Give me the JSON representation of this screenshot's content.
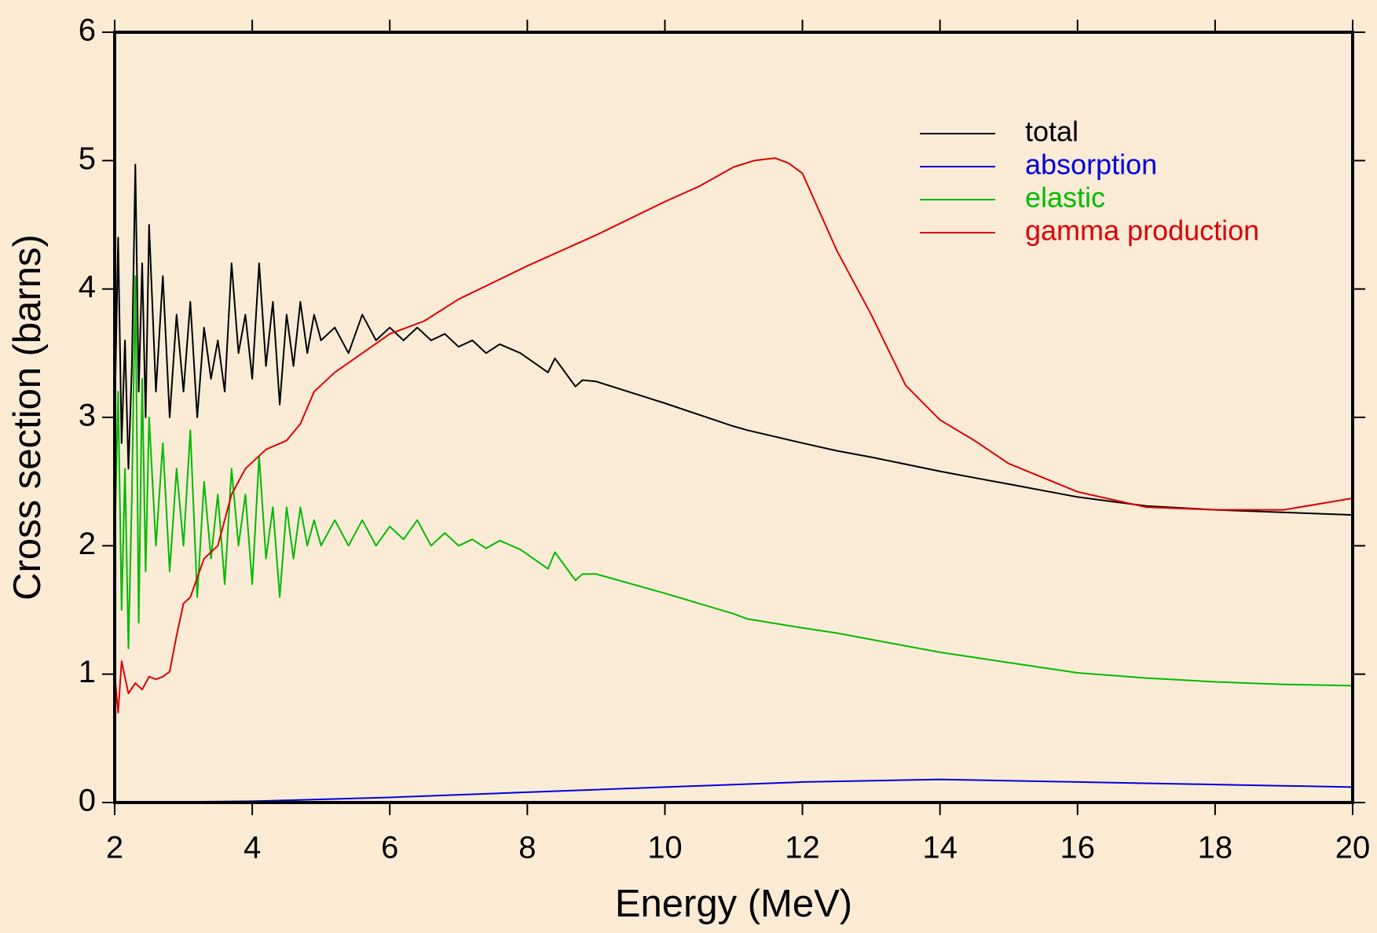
{
  "chart_data": {
    "type": "line",
    "xlabel": "Energy (MeV)",
    "ylabel": "Cross section (barns)",
    "xlim": [
      2,
      20
    ],
    "ylim": [
      0,
      6
    ],
    "xticks": [
      2,
      4,
      6,
      8,
      10,
      12,
      14,
      16,
      18,
      20
    ],
    "yticks": [
      0,
      1,
      2,
      3,
      4,
      5,
      6
    ],
    "legend": "upper right",
    "series": [
      {
        "name": "total",
        "color": "#000000",
        "x": [
          2.0,
          2.05,
          2.1,
          2.15,
          2.2,
          2.25,
          2.3,
          2.35,
          2.4,
          2.45,
          2.5,
          2.6,
          2.7,
          2.8,
          2.9,
          3.0,
          3.1,
          3.2,
          3.3,
          3.4,
          3.5,
          3.6,
          3.7,
          3.8,
          3.9,
          4.0,
          4.1,
          4.2,
          4.3,
          4.4,
          4.5,
          4.6,
          4.7,
          4.8,
          4.9,
          5.0,
          5.2,
          5.4,
          5.6,
          5.8,
          6.0,
          6.2,
          6.4,
          6.6,
          6.8,
          7.0,
          7.2,
          7.4,
          7.6,
          7.9,
          8.3,
          8.4,
          8.7,
          8.8,
          9.0,
          10,
          11,
          11.2,
          12,
          12.5,
          13,
          14,
          14.5,
          15,
          16,
          17,
          18,
          19,
          20
        ],
        "values": [
          3.0,
          4.4,
          2.8,
          3.6,
          2.6,
          3.4,
          4.97,
          3.2,
          4.2,
          3.0,
          4.5,
          3.2,
          4.1,
          3.0,
          3.8,
          3.2,
          3.9,
          3.0,
          3.7,
          3.3,
          3.6,
          3.2,
          4.2,
          3.5,
          3.8,
          3.3,
          4.2,
          3.4,
          3.9,
          3.1,
          3.8,
          3.4,
          3.9,
          3.5,
          3.8,
          3.6,
          3.7,
          3.5,
          3.8,
          3.6,
          3.7,
          3.6,
          3.7,
          3.6,
          3.65,
          3.55,
          3.6,
          3.5,
          3.57,
          3.5,
          3.35,
          3.46,
          3.24,
          3.29,
          3.28,
          3.11,
          2.93,
          2.9,
          2.8,
          2.74,
          2.69,
          2.58,
          2.53,
          2.48,
          2.38,
          2.31,
          2.28,
          2.26,
          2.24
        ]
      },
      {
        "name": "absorption",
        "color": "#0000dd",
        "x": [
          2,
          4,
          6,
          8,
          10,
          12,
          14,
          16,
          18,
          20
        ],
        "values": [
          0,
          0.01,
          0.04,
          0.08,
          0.12,
          0.16,
          0.18,
          0.16,
          0.14,
          0.12
        ]
      },
      {
        "name": "elastic",
        "color": "#00bb00",
        "x": [
          2.0,
          2.05,
          2.1,
          2.15,
          2.2,
          2.25,
          2.3,
          2.35,
          2.4,
          2.45,
          2.5,
          2.6,
          2.7,
          2.8,
          2.9,
          3.0,
          3.1,
          3.2,
          3.3,
          3.4,
          3.5,
          3.6,
          3.7,
          3.8,
          3.9,
          4.0,
          4.1,
          4.2,
          4.3,
          4.4,
          4.5,
          4.6,
          4.7,
          4.8,
          4.9,
          5.0,
          5.2,
          5.4,
          5.6,
          5.8,
          6.0,
          6.2,
          6.4,
          6.6,
          6.8,
          7.0,
          7.2,
          7.4,
          7.6,
          7.9,
          8.3,
          8.4,
          8.7,
          8.8,
          9.0,
          10,
          11,
          11.2,
          12,
          12.5,
          13,
          14,
          14.5,
          15,
          16,
          17,
          18,
          19,
          20
        ],
        "values": [
          2.0,
          3.2,
          1.5,
          2.6,
          1.2,
          2.4,
          4.1,
          1.4,
          3.3,
          1.8,
          3.0,
          2.0,
          2.8,
          1.8,
          2.6,
          2.0,
          2.9,
          1.6,
          2.5,
          1.9,
          2.4,
          1.7,
          2.6,
          2.0,
          2.4,
          1.7,
          2.7,
          1.9,
          2.3,
          1.6,
          2.3,
          1.9,
          2.3,
          2.0,
          2.2,
          2.0,
          2.2,
          2.0,
          2.2,
          2.0,
          2.15,
          2.05,
          2.2,
          2.0,
          2.1,
          2.0,
          2.05,
          1.98,
          2.04,
          1.97,
          1.82,
          1.95,
          1.73,
          1.78,
          1.78,
          1.63,
          1.47,
          1.43,
          1.36,
          1.32,
          1.27,
          1.17,
          1.13,
          1.09,
          1.01,
          0.97,
          0.94,
          0.92,
          0.91
        ]
      },
      {
        "name": "gamma production",
        "color": "#dd0000",
        "x": [
          2,
          2.05,
          2.1,
          2.2,
          2.3,
          2.4,
          2.5,
          2.6,
          2.7,
          2.8,
          2.9,
          3.0,
          3.1,
          3.3,
          3.5,
          3.7,
          3.9,
          4.2,
          4.5,
          4.7,
          4.9,
          5.2,
          5.6,
          6.0,
          6.5,
          7.0,
          7.5,
          8.0,
          8.5,
          9.0,
          9.5,
          10,
          10.5,
          11,
          11.3,
          11.6,
          11.8,
          12,
          12.5,
          13,
          13.5,
          14,
          14.5,
          15,
          16,
          17,
          18,
          19,
          20
        ],
        "values": [
          1.0,
          0.7,
          1.1,
          0.85,
          0.93,
          0.88,
          0.98,
          0.96,
          0.98,
          1.02,
          1.3,
          1.55,
          1.6,
          1.9,
          2.0,
          2.4,
          2.6,
          2.75,
          2.82,
          2.95,
          3.2,
          3.35,
          3.5,
          3.65,
          3.75,
          3.92,
          4.05,
          4.18,
          4.3,
          4.42,
          4.55,
          4.68,
          4.8,
          4.95,
          5.0,
          5.02,
          4.98,
          4.9,
          4.3,
          3.8,
          3.25,
          2.98,
          2.82,
          2.64,
          2.42,
          2.3,
          2.28,
          2.28,
          2.37
        ]
      }
    ]
  }
}
